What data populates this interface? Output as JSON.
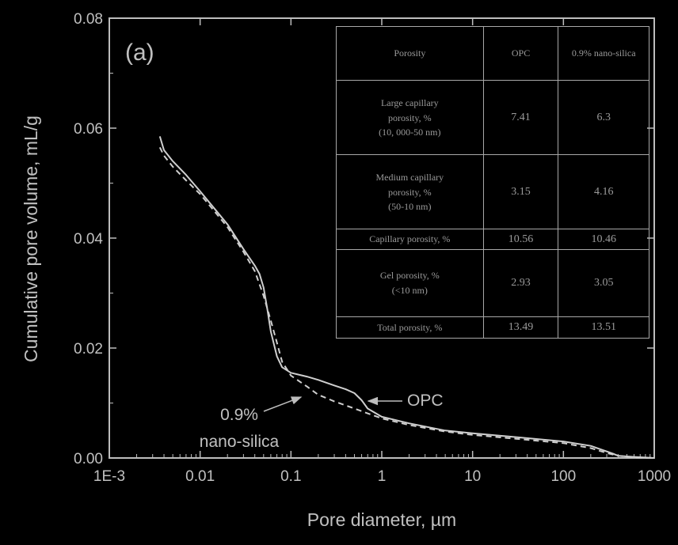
{
  "chart_data": {
    "type": "line",
    "panel_label": "(a)",
    "xlabel": "Pore diameter, µm",
    "ylabel": "Cumulative pore volume, mL/g",
    "xscale": "log",
    "xlim": [
      0.001,
      1000
    ],
    "ylim": [
      0.0,
      0.08
    ],
    "xticks": [
      0.001,
      0.01,
      0.1,
      1,
      10,
      100,
      1000
    ],
    "xtick_labels": [
      "1E-3",
      "0.01",
      "0.1",
      "1",
      "10",
      "100",
      "1000"
    ],
    "yticks": [
      0.0,
      0.02,
      0.04,
      0.06,
      0.08
    ],
    "ytick_labels": [
      "0.00",
      "0.02",
      "0.04",
      "0.06",
      "0.08"
    ],
    "grid": false,
    "series": [
      {
        "name": "OPC",
        "line_style": "solid",
        "x": [
          0.0036,
          0.004,
          0.005,
          0.007,
          0.01,
          0.015,
          0.02,
          0.03,
          0.04,
          0.045,
          0.05,
          0.055,
          0.06,
          0.07,
          0.08,
          0.1,
          0.15,
          0.2,
          0.3,
          0.4,
          0.5,
          0.6,
          0.7,
          1,
          2,
          5,
          10,
          30,
          100,
          200,
          300,
          350,
          400,
          600,
          1000
        ],
        "y": [
          0.0585,
          0.056,
          0.054,
          0.0515,
          0.0485,
          0.045,
          0.0425,
          0.038,
          0.035,
          0.0335,
          0.031,
          0.027,
          0.023,
          0.0185,
          0.0165,
          0.0155,
          0.0148,
          0.0142,
          0.0132,
          0.0125,
          0.0118,
          0.0105,
          0.009,
          0.0075,
          0.0063,
          0.005,
          0.0045,
          0.0038,
          0.003,
          0.0022,
          0.0012,
          0.0008,
          0.0004,
          0.0002,
          0.0
        ]
      },
      {
        "name": "0.9% nano-silica",
        "line_style": "dashed",
        "x": [
          0.0036,
          0.004,
          0.005,
          0.007,
          0.01,
          0.015,
          0.02,
          0.03,
          0.04,
          0.05,
          0.06,
          0.07,
          0.08,
          0.1,
          0.15,
          0.2,
          0.3,
          0.5,
          1,
          2,
          5,
          10,
          30,
          100,
          200,
          300,
          400,
          600,
          1000
        ],
        "y": [
          0.0565,
          0.055,
          0.053,
          0.0505,
          0.048,
          0.0445,
          0.042,
          0.0375,
          0.034,
          0.0295,
          0.025,
          0.021,
          0.0175,
          0.015,
          0.013,
          0.0115,
          0.0103,
          0.009,
          0.0072,
          0.006,
          0.0048,
          0.0042,
          0.0035,
          0.0027,
          0.0018,
          0.0009,
          0.0004,
          0.0001,
          0.0
        ]
      }
    ],
    "annotations": [
      {
        "text": "OPC",
        "arrow_to": {
          "x": 0.5,
          "y": 0.0105
        }
      },
      {
        "text_lines": [
          "0.9%",
          "nano-silica"
        ],
        "arrow_to": {
          "x": 0.22,
          "y": 0.011
        }
      }
    ]
  },
  "inset_table": {
    "columns": [
      "Porosity",
      "OPC",
      "0.9% nano-silica"
    ],
    "rows": [
      {
        "label_lines": [
          "Large capillary",
          "porosity, %",
          "(10, 000-50 nm)"
        ],
        "opc": "7.41",
        "nano": "6.3"
      },
      {
        "label_lines": [
          "Medium capillary",
          "porosity, %",
          "(50-10 nm)"
        ],
        "opc": "3.15",
        "nano": "4.16"
      },
      {
        "label_lines": [
          "Capillary porosity, %"
        ],
        "opc": "10.56",
        "nano": "10.46"
      },
      {
        "label_lines": [
          "Gel porosity, %",
          "(<10 nm)"
        ],
        "opc": "2.93",
        "nano": "3.05"
      },
      {
        "label_lines": [
          "Total porosity, %"
        ],
        "opc": "13.49",
        "nano": "13.51"
      }
    ]
  }
}
